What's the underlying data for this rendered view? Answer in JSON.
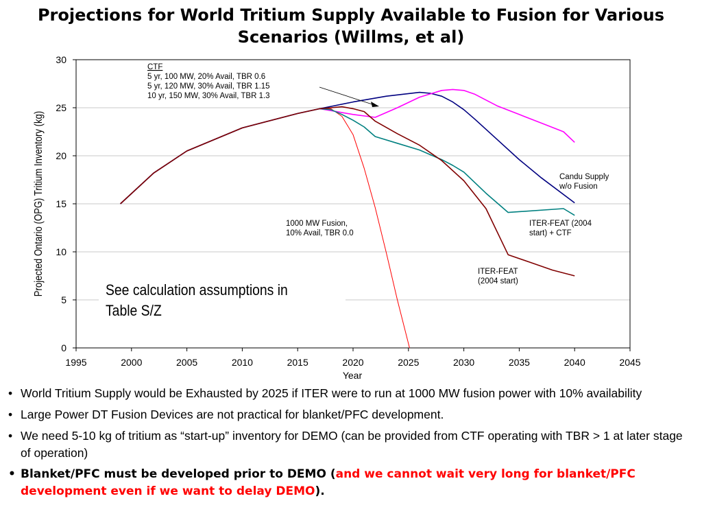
{
  "slide": {
    "title": "Projections for World Tritium Supply Available to Fusion for Various Scenarios (Willms, et al)",
    "assumptions_note": "See calculation assumptions in Table S/Z",
    "bullets": [
      {
        "text": "World Tritium Supply would be Exhausted by 2025 if ITER were to run at 1000 MW fusion power with 10% availability"
      },
      {
        "text": "Large Power DT Fusion Devices are not practical for blanket/PFC development."
      },
      {
        "text": "We need 5-10 kg of tritium as “start-up” inventory for DEMO (can be provided from CTF operating with TBR > 1 at later stage of operation)"
      },
      {
        "text": "Blanket/PFC must be developed prior to DEMO (",
        "highlight": "and we cannot wait very long for blanket/PFC development even if we want to delay DEMO",
        "suffix": ")."
      }
    ],
    "bullet_glyph": "•",
    "highlight_color": "#ff0000"
  },
  "chart_data": {
    "type": "line",
    "xlabel": "Year",
    "ylabel": "Projected Ontario (OPG) Tritium Inventory (kg)",
    "xlim": [
      1995,
      2045
    ],
    "ylim": [
      0,
      30
    ],
    "xticks": [
      1995,
      2000,
      2005,
      2010,
      2015,
      2020,
      2025,
      2030,
      2035,
      2040,
      2045
    ],
    "yticks": [
      0,
      5,
      10,
      15,
      20,
      25,
      30
    ],
    "grid": "horizontal",
    "series": [
      {
        "name": "1000 MW Fusion, 10% Avail, TBR 0.0",
        "color": "#ff0000",
        "width": 1,
        "x": [
          1999,
          2002,
          2005,
          2010,
          2015,
          2017,
          2018,
          2019,
          2020,
          2021,
          2022,
          2023,
          2024,
          2025.1
        ],
        "y": [
          15,
          18.2,
          20.5,
          22.9,
          24.4,
          24.9,
          24.9,
          24.1,
          22.2,
          18.7,
          14.6,
          9.9,
          5,
          0
        ]
      },
      {
        "name": "Candu Supply w/o Fusion",
        "color": "#000080",
        "width": 1.6,
        "x": [
          1999,
          2002,
          2005,
          2010,
          2015,
          2017,
          2020,
          2023,
          2026,
          2027,
          2028,
          2029,
          2030,
          2031,
          2033,
          2035,
          2037,
          2040
        ],
        "y": [
          15,
          18.2,
          20.5,
          22.9,
          24.4,
          24.9,
          25.6,
          26.2,
          26.6,
          26.5,
          26.2,
          25.6,
          24.8,
          23.8,
          21.7,
          19.6,
          17.7,
          15.1
        ]
      },
      {
        "name": "CTF",
        "color": "#ff00ff",
        "width": 1.6,
        "x": [
          1999,
          2002,
          2005,
          2010,
          2015,
          2017,
          2018,
          2020,
          2022,
          2024,
          2026,
          2028,
          2029,
          2030,
          2031,
          2033,
          2035,
          2037,
          2039,
          2040
        ],
        "y": [
          15,
          18.2,
          20.5,
          22.9,
          24.4,
          24.9,
          24.7,
          24.3,
          24,
          25,
          26.1,
          26.8,
          26.9,
          26.8,
          26.4,
          25.2,
          24.3,
          23.4,
          22.5,
          21.4
        ]
      },
      {
        "name": "ITER-FEAT (2004 start) + CTF",
        "color": "#008080",
        "width": 1.6,
        "x": [
          1999,
          2002,
          2005,
          2010,
          2015,
          2017,
          2018,
          2019,
          2020,
          2021,
          2022,
          2024,
          2026,
          2027,
          2028,
          2029,
          2030,
          2032,
          2034,
          2039,
          2040
        ],
        "y": [
          15,
          18.2,
          20.5,
          22.9,
          24.4,
          24.9,
          24.8,
          24.3,
          23.7,
          23,
          22,
          21.3,
          20.6,
          20.1,
          19.6,
          19,
          18.3,
          16.1,
          14.1,
          14.5,
          13.8
        ]
      },
      {
        "name": "ITER-FEAT (2004 start)",
        "color": "#800000",
        "width": 1.6,
        "x": [
          1999,
          2002,
          2005,
          2010,
          2015,
          2017,
          2018,
          2019,
          2020,
          2021,
          2022,
          2024,
          2026,
          2028,
          2030,
          2032,
          2034,
          2036,
          2038,
          2040
        ],
        "y": [
          15,
          18.2,
          20.5,
          22.9,
          24.4,
          24.9,
          25,
          25.1,
          24.9,
          24.6,
          23.6,
          22.3,
          21.1,
          19.5,
          17.4,
          14.5,
          9.7,
          8.9,
          8.1,
          7.5
        ]
      }
    ],
    "annotations": [
      {
        "lines": [
          "CTF",
          "5 yr, 100 MW, 20% Avail, TBR 0.6",
          "5 yr, 120 MW, 30% Avail, TBR 1.15",
          "10 yr, 150 MW, 30% Avail, TBR 1.3"
        ]
      },
      {
        "lines": [
          "Candu Supply",
          "w/o Fusion"
        ]
      },
      {
        "lines": [
          "1000 MW Fusion,",
          "10% Avail, TBR 0.0"
        ]
      },
      {
        "lines": [
          "ITER-FEAT (2004",
          "start) + CTF"
        ]
      },
      {
        "lines": [
          "ITER-FEAT",
          "(2004 start)"
        ]
      }
    ]
  }
}
